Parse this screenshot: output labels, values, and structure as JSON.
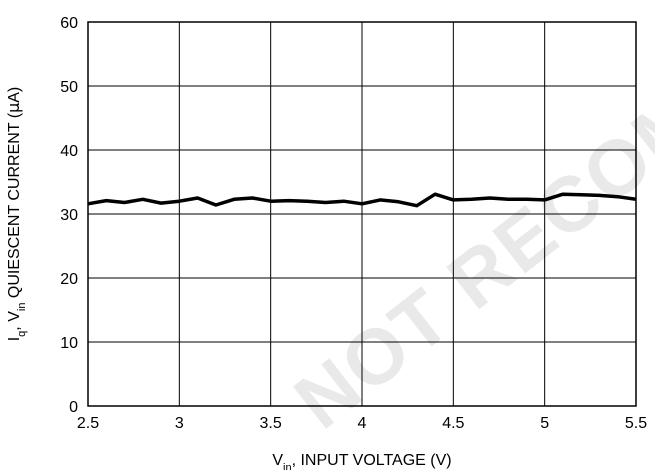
{
  "chart_data": {
    "type": "line",
    "xlabel": {
      "main": "V",
      "sub": "in",
      "rest": ", INPUT VOLTAGE (V)"
    },
    "ylabel": {
      "i": "I",
      "i_sub": "q",
      "sep": ", V",
      "v_sub": "in",
      "rest": " QUIESCENT CURRENT (",
      "mu": "μ",
      "unit": "A)"
    },
    "xlim": [
      2.5,
      5.5
    ],
    "ylim": [
      0,
      60
    ],
    "xticks": [
      2.5,
      3,
      3.5,
      4,
      4.5,
      5,
      5.5
    ],
    "xtick_labels": [
      "2.5",
      "3",
      "3.5",
      "4",
      "4.5",
      "5",
      "5.5"
    ],
    "yticks": [
      0,
      10,
      20,
      30,
      40,
      50,
      60
    ],
    "ytick_labels": [
      "0",
      "10",
      "20",
      "30",
      "40",
      "50",
      "60"
    ],
    "grid": true,
    "series": [
      {
        "x": [
          2.5,
          2.6,
          2.7,
          2.8,
          2.9,
          3.0,
          3.1,
          3.2,
          3.3,
          3.4,
          3.5,
          3.6,
          3.7,
          3.8,
          3.9,
          4.0,
          4.1,
          4.2,
          4.3,
          4.4,
          4.5,
          4.6,
          4.7,
          4.8,
          4.9,
          5.0,
          5.1,
          5.2,
          5.3,
          5.4,
          5.5
        ],
        "y": [
          31.6,
          32.1,
          31.8,
          32.3,
          31.7,
          32.0,
          32.5,
          31.4,
          32.3,
          32.5,
          32.0,
          32.1,
          32.0,
          31.8,
          32.0,
          31.6,
          32.2,
          31.9,
          31.3,
          33.1,
          32.2,
          32.3,
          32.5,
          32.3,
          32.3,
          32.2,
          33.1,
          33.0,
          32.9,
          32.7,
          32.3
        ]
      }
    ]
  },
  "watermark": {
    "text": "NOT RECOMMENDED"
  }
}
